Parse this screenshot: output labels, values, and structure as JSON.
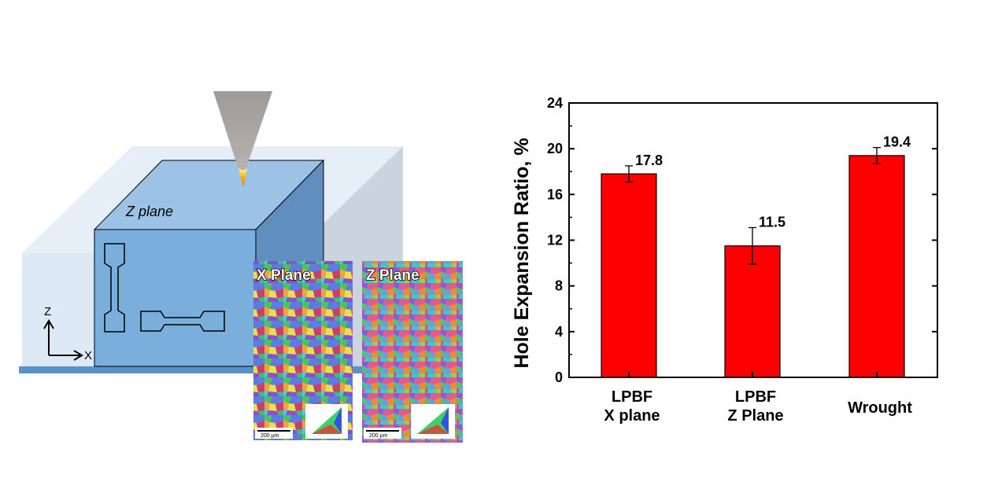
{
  "schematic": {
    "z_plane_label": "Z plane",
    "axis_z_label": "Z",
    "axis_x_label": "X",
    "ebsd_x_label": "X Plane",
    "ebsd_z_label": "Z Plane",
    "scale_bar_label": "200 µm",
    "laser_color": "#a9a5a3",
    "part_color": "#7aaedb",
    "powder_bed_color": "#dde9f5"
  },
  "chart_data": {
    "type": "bar",
    "title": "",
    "xlabel": "",
    "ylabel": "Hole Expansion Ratio, %",
    "categories": [
      [
        "LPBF",
        "X plane"
      ],
      [
        "LPBF",
        "Z Plane"
      ],
      [
        "Wrought"
      ]
    ],
    "values": [
      17.8,
      11.5,
      19.4
    ],
    "errors": [
      0.7,
      1.6,
      0.7
    ],
    "value_labels": [
      "17.8",
      "11.5",
      "19.4"
    ],
    "ylim": [
      0,
      24
    ],
    "yticks": [
      0,
      4,
      8,
      12,
      16,
      20,
      24
    ],
    "bar_color": "#ff0000",
    "grid": false,
    "legend": "none"
  }
}
